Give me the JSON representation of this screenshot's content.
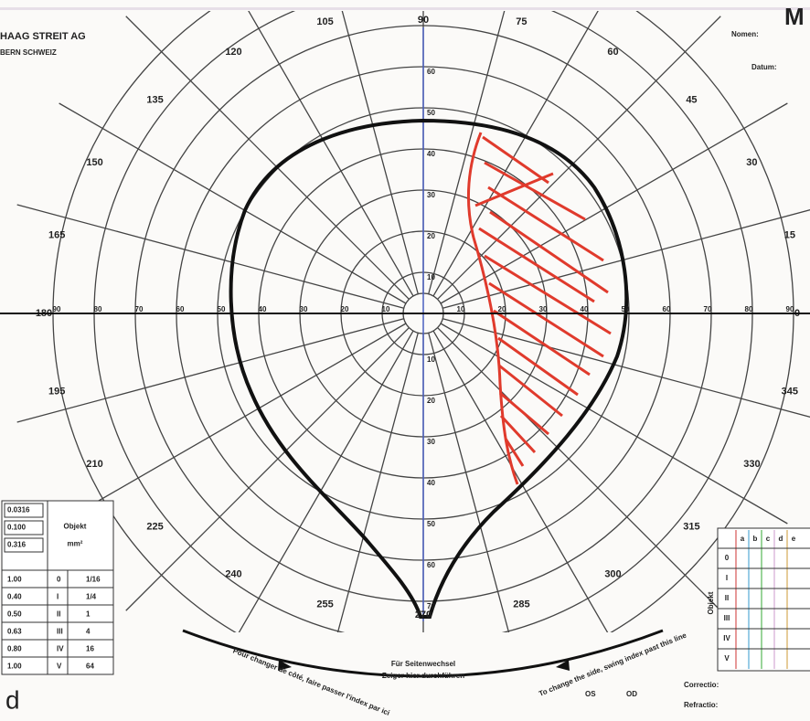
{
  "header": {
    "brand": "HAAG STREIT AG",
    "location": "BERN SCHWEIZ",
    "name_label": "Nomen:",
    "date_label": "Datum:",
    "corner_letter": "M"
  },
  "angle_labels": [
    "120",
    "105",
    "90",
    "75",
    "60",
    "45",
    "30",
    "15",
    "0",
    "345",
    "330",
    "315",
    "300",
    "285",
    "270",
    "255",
    "240",
    "225",
    "210",
    "195",
    "180",
    "165",
    "150",
    "135"
  ],
  "radial_labels": [
    "10",
    "20",
    "30",
    "40",
    "50",
    "60",
    "70",
    "80",
    "90"
  ],
  "stimulus_table": {
    "top_rows": [
      "0.0316",
      "0.100",
      "0.316"
    ],
    "headers": [
      "Objekt",
      "mm²"
    ],
    "rows": [
      [
        "1.00",
        "0",
        "1/16"
      ],
      [
        "0.40",
        "I",
        "1/4"
      ],
      [
        "0.50",
        "II",
        "1"
      ],
      [
        "0.63",
        "III",
        "4"
      ],
      [
        "0.80",
        "IV",
        "16"
      ],
      [
        "1.00",
        "V",
        "64"
      ]
    ]
  },
  "object_grid": {
    "title": "Objekt",
    "rows": [
      "0",
      "I",
      "II",
      "III",
      "IV",
      "V"
    ],
    "columns": [
      "a",
      "b",
      "c",
      "d",
      "e"
    ]
  },
  "footer": {
    "french": "Pour changer de côté, faire passer l'index par ici",
    "german_1": "Für Seitenwechsel",
    "german_2": "Zeiger hier durchführen",
    "english": "To change the side, swing index past this line",
    "os": "OS",
    "od": "OD",
    "correctio": "Correctio:",
    "refractio": "Refractio:"
  },
  "panel_label": "d"
}
